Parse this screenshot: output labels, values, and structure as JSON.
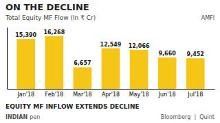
{
  "chart_data": {
    "type": "bar",
    "title": "ON THE DECLINE",
    "subtitle": "Total Equity MF Flow (In ₹ Cr)",
    "annotations": [
      "AMFI",
      "EQUITY MF INFLOW EXTENDS DECLINE",
      "INDIAN",
      "pen",
      "Bloomberg  |  Quint"
    ],
    "categories": [
      "Jan'18",
      "Feb'18",
      "Mar'18",
      "Apr'18",
      "May'18",
      "Jun'18",
      "Jul'18"
    ],
    "values": [
      15390,
      16268,
      6657,
      12549,
      12066,
      9660,
      9452
    ],
    "value_labels": [
      "15,390",
      "16,268",
      "6,657",
      "12,549",
      "12,066",
      "9,660",
      "9,452"
    ],
    "data_labels": true,
    "color": "#F5C518",
    "ylim": [
      0,
      19000
    ],
    "tick_labels": "x",
    "grid": false
  }
}
